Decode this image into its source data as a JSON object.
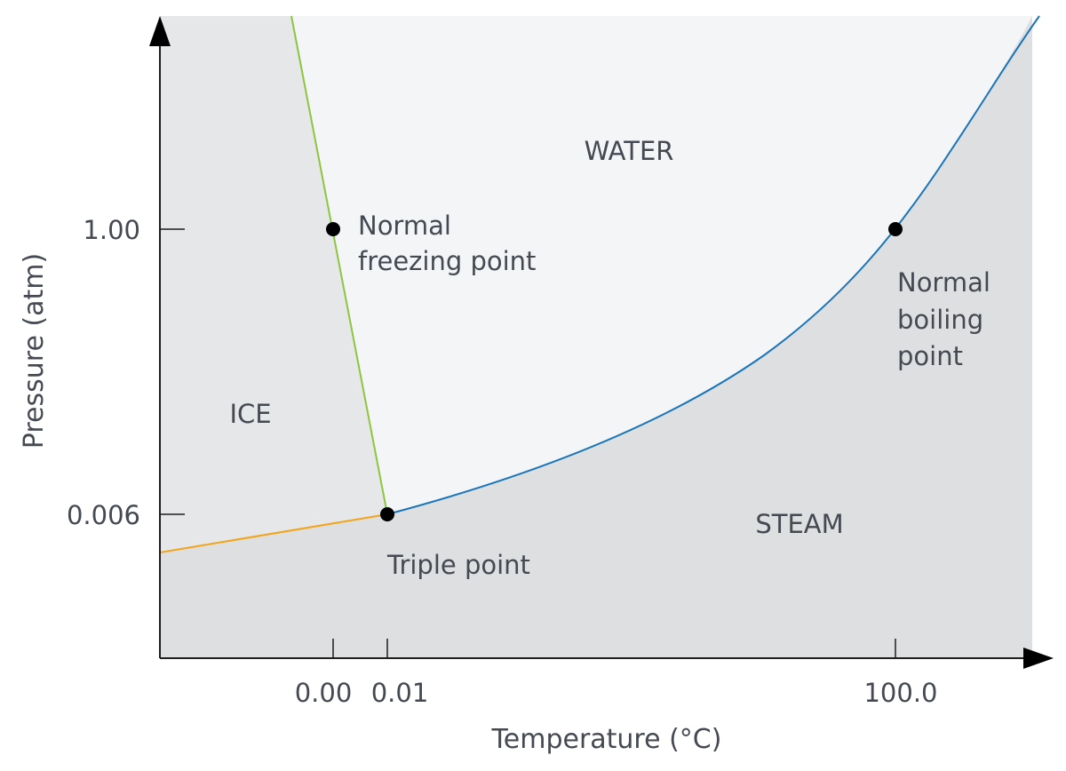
{
  "diagram": {
    "regions": {
      "water": "WATER",
      "ice": "ICE",
      "steam": "STEAM"
    },
    "points": {
      "normal_freezing": {
        "label_line1": "Normal",
        "label_line2": "freezing point",
        "temperature_c": 0.0,
        "pressure_atm": 1.0
      },
      "normal_boiling": {
        "label_line1": "Normal",
        "label_line2": "boiling",
        "label_line3": "point",
        "temperature_c": 100.0,
        "pressure_atm": 1.0
      },
      "triple": {
        "label": "Triple point",
        "temperature_c": 0.01,
        "pressure_atm": 0.006
      }
    },
    "x_axis": {
      "title": "Temperature (°C)",
      "ticks": [
        "0.00",
        "0.01",
        "100.0"
      ]
    },
    "y_axis": {
      "title": "Pressure (atm)",
      "ticks": [
        "1.00",
        "0.006"
      ]
    },
    "colors": {
      "melting_curve": "#8cc63f",
      "sublimation_curve": "#f3a41b",
      "vaporization_curve": "#1a75b8",
      "solid_and_gas_region": "#dedfe1",
      "liquid_region": "#f3f5f7",
      "axis": "#1e1e1e",
      "text": "#454a52"
    }
  }
}
